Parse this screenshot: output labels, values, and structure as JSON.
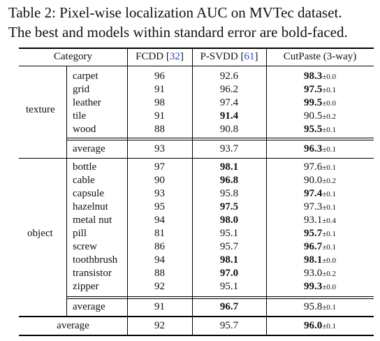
{
  "caption": {
    "line1": "Table 2:  Pixel-wise localization AUC on MVTec dataset.",
    "line2": "The best and models within standard error are bold-faced."
  },
  "header": {
    "category": "Category",
    "col1": "FCDD",
    "col1_ref": "32",
    "col2": "P-SVDD",
    "col2_ref": "61",
    "col3": "CutPaste (3-way)"
  },
  "groups": {
    "texture": "texture",
    "object": "object"
  },
  "rows": [
    {
      "name": "carpet",
      "fcdd": "96",
      "psvdd": "92.6",
      "cp": "98.3",
      "pm": "±0.0"
    },
    {
      "name": "grid",
      "fcdd": "91",
      "psvdd": "96.2",
      "cp": "97.5",
      "pm": "±0.1"
    },
    {
      "name": "leather",
      "fcdd": "98",
      "psvdd": "97.4",
      "cp": "99.5",
      "pm": "±0.0"
    },
    {
      "name": "tile",
      "fcdd": "91",
      "psvdd": "91.4",
      "cp": "90.5",
      "pm": "±0.2"
    },
    {
      "name": "wood",
      "fcdd": "88",
      "psvdd": "90.8",
      "cp": "95.5",
      "pm": "±0.1"
    },
    {
      "name": "average",
      "fcdd": "93",
      "psvdd": "93.7",
      "cp": "96.3",
      "pm": "±0.1"
    },
    {
      "name": "bottle",
      "fcdd": "97",
      "psvdd": "98.1",
      "cp": "97.6",
      "pm": "±0.1"
    },
    {
      "name": "cable",
      "fcdd": "90",
      "psvdd": "96.8",
      "cp": "90.0",
      "pm": "±0.2"
    },
    {
      "name": "capsule",
      "fcdd": "93",
      "psvdd": "95.8",
      "cp": "97.4",
      "pm": "±0.1"
    },
    {
      "name": "hazelnut",
      "fcdd": "95",
      "psvdd": "97.5",
      "cp": "97.3",
      "pm": "±0.1"
    },
    {
      "name": "metal nut",
      "fcdd": "94",
      "psvdd": "98.0",
      "cp": "93.1",
      "pm": "±0.4"
    },
    {
      "name": "pill",
      "fcdd": "81",
      "psvdd": "95.1",
      "cp": "95.7",
      "pm": "±0.1"
    },
    {
      "name": "screw",
      "fcdd": "86",
      "psvdd": "95.7",
      "cp": "96.7",
      "pm": "±0.1"
    },
    {
      "name": "toothbrush",
      "fcdd": "94",
      "psvdd": "98.1",
      "cp": "98.1",
      "pm": "±0.0"
    },
    {
      "name": "transistor",
      "fcdd": "88",
      "psvdd": "97.0",
      "cp": "93.0",
      "pm": "±0.2"
    },
    {
      "name": "zipper",
      "fcdd": "92",
      "psvdd": "95.1",
      "cp": "99.3",
      "pm": "±0.0"
    },
    {
      "name": "average",
      "fcdd": "91",
      "psvdd": "96.7",
      "cp": "95.8",
      "pm": "±0.1"
    },
    {
      "name": "average",
      "fcdd": "92",
      "psvdd": "95.7",
      "cp": "96.0",
      "pm": "±0.1"
    }
  ]
}
